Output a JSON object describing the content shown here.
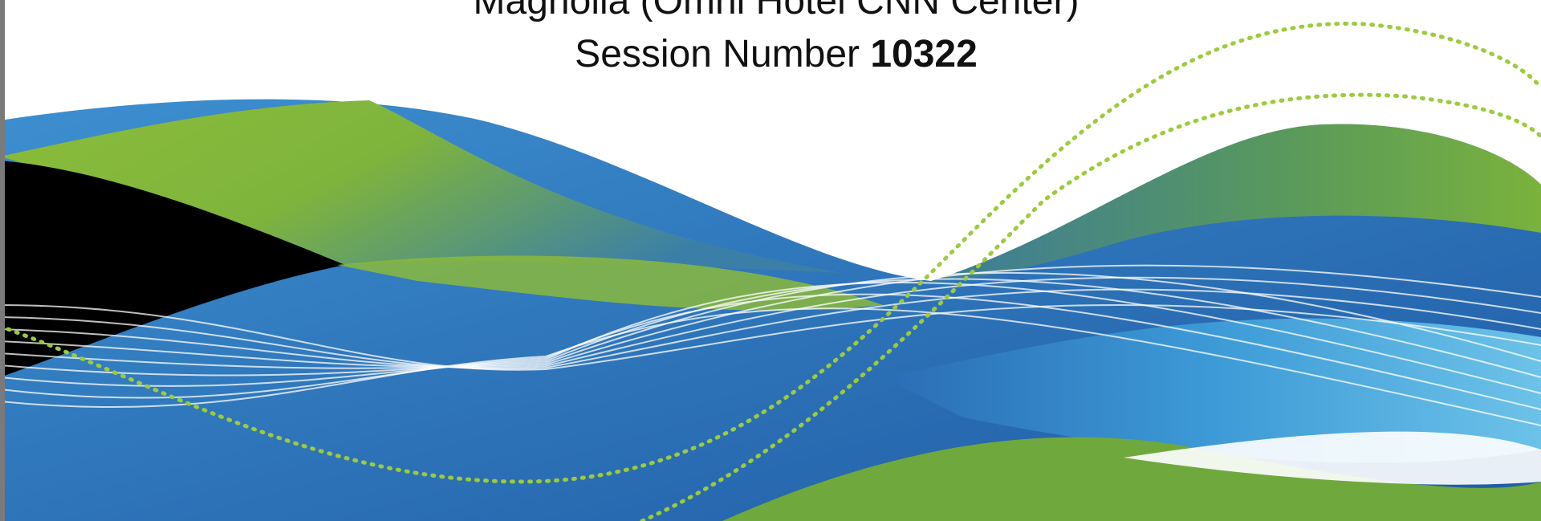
{
  "slide": {
    "location": "Magnolia (Omni Hotel CNN Center)",
    "session_label": "Session Number",
    "session_number": "10322"
  }
}
